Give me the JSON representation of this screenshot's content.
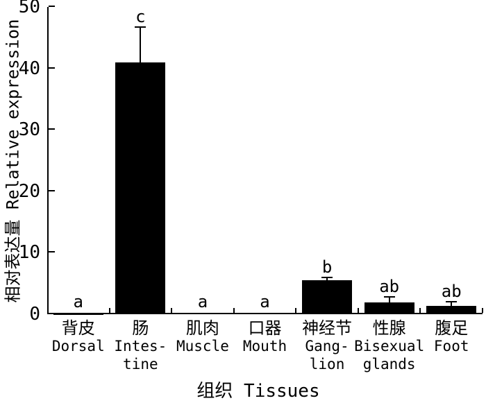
{
  "figure": {
    "background": "#ffffff",
    "foreground": "#000000"
  },
  "chart_data": {
    "type": "bar",
    "title": "",
    "xlabel": "组织 Tissues",
    "ylabel": "相对表达量 Relative expression",
    "ylim": [
      0,
      50
    ],
    "yticks": [
      0,
      10,
      20,
      30,
      40,
      50
    ],
    "grid": false,
    "legend_position": "none",
    "bar_color": "#000000",
    "error_bars": "upper-only",
    "categories": [
      {
        "label_lines": [
          "背皮",
          "Dorsal"
        ],
        "value": 0.05,
        "error_plus": 0,
        "sig_letter": "a"
      },
      {
        "label_lines": [
          "肠",
          "Intes-",
          "tine"
        ],
        "value": 41,
        "error_plus": 5.8,
        "sig_letter": "c"
      },
      {
        "label_lines": [
          "肌肉",
          "Muscle"
        ],
        "value": 0.2,
        "error_plus": 0,
        "sig_letter": "a"
      },
      {
        "label_lines": [
          "口器",
          "Mouth"
        ],
        "value": 0.2,
        "error_plus": 0,
        "sig_letter": "a"
      },
      {
        "label_lines": [
          "神经节",
          "Gang-",
          "lion"
        ],
        "value": 5.5,
        "error_plus": 0.6,
        "sig_letter": "b"
      },
      {
        "label_lines": [
          "性腺",
          "Bisexual",
          "glands"
        ],
        "value": 1.9,
        "error_plus": 1.0,
        "sig_letter": "ab"
      },
      {
        "label_lines": [
          "腹足",
          "Foot"
        ],
        "value": 1.4,
        "error_plus": 0.7,
        "sig_letter": "ab"
      }
    ]
  }
}
